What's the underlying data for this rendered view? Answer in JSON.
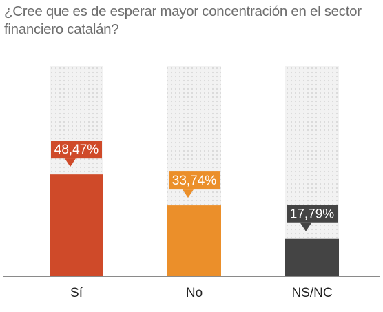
{
  "title": "¿Cree que es de esperar mayor concentración en el sector financiero catalán?",
  "chart_data": {
    "type": "bar",
    "categories": [
      "Sí",
      "No",
      "NS/NC"
    ],
    "values": [
      48.47,
      33.74,
      17.79
    ],
    "value_labels": [
      "48,47%",
      "33,74%",
      "17,79%"
    ],
    "colors": [
      "#cf4a29",
      "#eb8f2a",
      "#444444"
    ],
    "background_track_color": "#ededed",
    "ylim": [
      0,
      100
    ],
    "grid": false,
    "legend": "none"
  }
}
